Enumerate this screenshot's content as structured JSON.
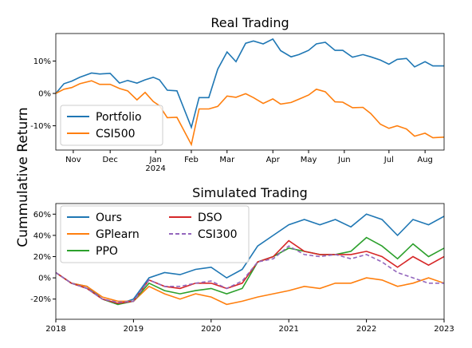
{
  "chart_data": [
    {
      "type": "line",
      "title": "Real Trading",
      "ylabel": "Cummulative Return",
      "x": [
        0.5,
        0.71,
        0.91,
        1.12,
        1.42,
        1.63,
        1.9,
        2.14,
        2.35,
        2.59,
        2.8,
        3.01,
        3.17,
        3.37,
        3.62,
        3.99,
        4.19,
        4.44,
        4.67,
        4.91,
        5.14,
        5.39,
        5.59,
        5.84,
        6.09,
        6.29,
        6.56,
        6.76,
        7.01,
        7.21,
        7.44,
        7.69,
        7.89,
        8.14,
        8.41,
        8.61,
        8.86,
        9.08,
        9.29,
        9.53,
        9.74,
        10.01,
        10.21,
        10.5
      ],
      "series": [
        {
          "name": "Portfolio",
          "color": "#1f77b4",
          "values": [
            0,
            3,
            3.8,
            5,
            6.3,
            6,
            6.2,
            3.2,
            4,
            3.2,
            4.2,
            5,
            4.2,
            1,
            0.8,
            -10.5,
            -1.3,
            -1.3,
            7.5,
            12.8,
            9.8,
            15.5,
            16.2,
            15.3,
            16.8,
            13.2,
            11.3,
            12,
            13.3,
            15.3,
            15.8,
            13.3,
            13.3,
            11.2,
            12,
            11.3,
            10.3,
            9,
            10.5,
            10.8,
            8.2,
            9.8,
            8.5,
            8.5
          ]
        },
        {
          "name": "CSI500",
          "color": "#ff7f0e",
          "values": [
            0,
            1.3,
            1.8,
            3,
            3.9,
            2.8,
            2.8,
            1.5,
            0.8,
            -2,
            0.3,
            -2.5,
            -3.8,
            -7.5,
            -7.4,
            -15.8,
            -4.8,
            -4.8,
            -4,
            -0.8,
            -1.2,
            -0.1,
            -1.3,
            -3.1,
            -1.7,
            -3.3,
            -2.8,
            -1.8,
            -0.5,
            1.3,
            0.5,
            -2.6,
            -2.7,
            -4.4,
            -4.3,
            -6.2,
            -9.5,
            -10.8,
            -10,
            -11,
            -13.2,
            -12.3,
            -13.7,
            -13.5
          ]
        }
      ],
      "xlim": [
        0.5,
        10.5
      ],
      "xticks": [
        {
          "value": 0.95,
          "label": "Nov"
        },
        {
          "value": 1.9,
          "label": "Dec"
        },
        {
          "value": 3.07,
          "label": "Jan\n2024"
        },
        {
          "value": 3.99,
          "label": "Feb"
        },
        {
          "value": 4.91,
          "label": "Mar"
        },
        {
          "value": 6.09,
          "label": "Apr"
        },
        {
          "value": 7.01,
          "label": "May"
        },
        {
          "value": 7.93,
          "label": "Jun"
        },
        {
          "value": 9.08,
          "label": "Jul"
        },
        {
          "value": 10.01,
          "label": "Aug"
        }
      ],
      "ylim": [
        -17.5,
        18.5
      ],
      "yticks": [
        {
          "value": -10,
          "label": "-10%"
        },
        {
          "value": 0,
          "label": "0%"
        },
        {
          "value": 10,
          "label": "10%"
        }
      ],
      "legend": "lower left",
      "legend_columns": 1
    },
    {
      "type": "line",
      "title": "Simulated Trading",
      "x": [
        2018.0,
        2018.2,
        2018.4,
        2018.6,
        2018.8,
        2019.0,
        2019.2,
        2019.4,
        2019.6,
        2019.8,
        2020.0,
        2020.2,
        2020.4,
        2020.6,
        2020.8,
        2021.0,
        2021.2,
        2021.4,
        2021.6,
        2021.8,
        2022.0,
        2022.2,
        2022.4,
        2022.6,
        2022.8,
        2023.0
      ],
      "series": [
        {
          "name": "Ours",
          "color": "#1f77b4",
          "linestyle": "solid",
          "values": [
            5,
            -5,
            -8,
            -20,
            -25,
            -20,
            0,
            5,
            3,
            8,
            10,
            0,
            8,
            30,
            40,
            50,
            55,
            50,
            55,
            48,
            60,
            55,
            40,
            55,
            50,
            58
          ]
        },
        {
          "name": "GPlearn",
          "color": "#ff7f0e",
          "linestyle": "solid",
          "values": [
            5,
            -5,
            -8,
            -18,
            -22,
            -22,
            -8,
            -15,
            -20,
            -15,
            -18,
            -25,
            -22,
            -18,
            -15,
            -12,
            -8,
            -10,
            -5,
            -5,
            0,
            -2,
            -8,
            -5,
            0,
            -5
          ]
        },
        {
          "name": "PPO",
          "color": "#2ca02c",
          "linestyle": "solid",
          "values": [
            5,
            -5,
            -10,
            -20,
            -25,
            -22,
            -5,
            -12,
            -15,
            -12,
            -10,
            -15,
            -10,
            15,
            20,
            28,
            25,
            22,
            22,
            25,
            38,
            30,
            18,
            32,
            20,
            28
          ]
        },
        {
          "name": "DSO",
          "color": "#d62728",
          "linestyle": "solid",
          "values": [
            5,
            -5,
            -10,
            -20,
            -24,
            -22,
            -2,
            -8,
            -10,
            -5,
            -5,
            -10,
            -5,
            15,
            20,
            35,
            25,
            22,
            22,
            22,
            25,
            20,
            10,
            20,
            12,
            20
          ]
        },
        {
          "name": "CSI300",
          "color": "#9467bd",
          "linestyle": "dashed",
          "values": [
            5,
            -5,
            -10,
            -20,
            -23,
            -22,
            -2,
            -8,
            -8,
            -5,
            -3,
            -10,
            -3,
            15,
            18,
            30,
            22,
            20,
            22,
            18,
            22,
            15,
            5,
            0,
            -5,
            -5
          ]
        }
      ],
      "xlim": [
        2018,
        2023
      ],
      "xticks": [
        2018,
        2019,
        2020,
        2021,
        2022,
        2023
      ],
      "ylim": [
        -39,
        70
      ],
      "yticks": [
        {
          "value": -20,
          "label": "-20%"
        },
        {
          "value": 0,
          "label": "0%"
        },
        {
          "value": 20,
          "label": "20%"
        },
        {
          "value": 40,
          "label": "40%"
        },
        {
          "value": 60,
          "label": "60%"
        }
      ],
      "legend": "upper left",
      "legend_columns": 2
    }
  ]
}
